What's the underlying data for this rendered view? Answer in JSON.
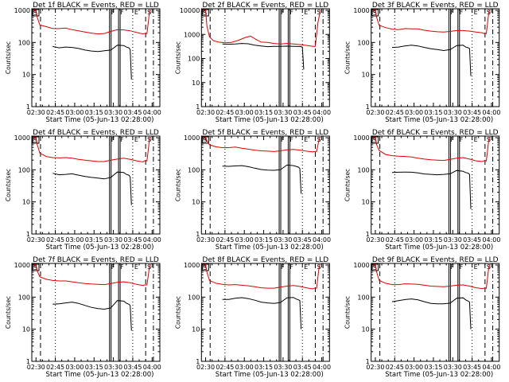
{
  "chart_data": [
    {
      "type": "line",
      "title": "Det 1f BLACK = Events, RED = LLD",
      "ylabel": "Counts/sec",
      "xlabel": "Start Time (05-Jun-13 02:28:00)",
      "ylim": [
        1,
        1000
      ],
      "xlim_min": [
        0,
        98
      ],
      "series": [
        {
          "name": "LLD",
          "color": "#e00000",
          "t": [
            0,
            2,
            3,
            5,
            10,
            15,
            20,
            25,
            30,
            35,
            40,
            45,
            50,
            55,
            60,
            65,
            70,
            75,
            80,
            85,
            86,
            88,
            90,
            91
          ],
          "y": [
            1100,
            1100,
            600,
            350,
            310,
            270,
            270,
            280,
            250,
            230,
            210,
            195,
            185,
            190,
            220,
            250,
            245,
            230,
            205,
            185,
            190,
            190,
            900,
            1100
          ]
        },
        {
          "name": "Events",
          "color": "#000000",
          "t": [
            15,
            20,
            25,
            30,
            35,
            40,
            45,
            50,
            55,
            60,
            65,
            70,
            72,
            74,
            75,
            76
          ],
          "y": [
            75,
            68,
            72,
            70,
            65,
            58,
            54,
            52,
            55,
            58,
            82,
            80,
            72,
            68,
            60,
            7
          ]
        }
      ]
    },
    {
      "type": "line",
      "title": "Det 2f BLACK = Events, RED = LLD",
      "ylabel": "Counts/sec",
      "xlabel": "Start Time (05-Jun-13 02:28:00)",
      "ylim": [
        1,
        10000
      ],
      "xlim_min": [
        0,
        98
      ],
      "series": [
        {
          "name": "LLD",
          "color": "#e00000",
          "t": [
            0,
            2,
            3,
            5,
            8,
            12,
            17,
            22,
            27,
            33,
            37,
            41,
            45,
            50,
            55,
            60,
            65,
            70,
            75,
            80,
            85,
            87,
            89,
            91
          ],
          "y": [
            12000,
            12000,
            2200,
            800,
            550,
            480,
            450,
            470,
            560,
            750,
            850,
            620,
            480,
            470,
            420,
            400,
            420,
            400,
            380,
            350,
            320,
            320,
            3000,
            12000
          ]
        },
        {
          "name": "Events",
          "color": "#000000",
          "t": [
            15,
            20,
            25,
            30,
            35,
            40,
            45,
            50,
            55,
            60,
            65,
            70,
            75,
            77,
            78
          ],
          "y": [
            400,
            390,
            400,
            420,
            410,
            360,
            330,
            310,
            320,
            320,
            325,
            320,
            315,
            300,
            35
          ]
        }
      ]
    },
    {
      "type": "line",
      "title": "Det 3f BLACK = Events, RED = LLD",
      "ylabel": "Counts/sec",
      "xlabel": "Start Time (05-Jun-13 02:28:00)",
      "ylim": [
        1,
        1000
      ],
      "xlim_min": [
        0,
        98
      ],
      "series": [
        {
          "name": "LLD",
          "color": "#e00000",
          "t": [
            0,
            2,
            3,
            5,
            10,
            15,
            20,
            25,
            30,
            35,
            40,
            45,
            50,
            55,
            60,
            65,
            70,
            75,
            80,
            85,
            86,
            88,
            90,
            91
          ],
          "y": [
            1100,
            1100,
            600,
            340,
            290,
            260,
            250,
            270,
            265,
            265,
            240,
            225,
            215,
            210,
            220,
            235,
            235,
            225,
            210,
            200,
            190,
            190,
            900,
            1100
          ]
        },
        {
          "name": "Events",
          "color": "#000000",
          "t": [
            15,
            20,
            25,
            30,
            35,
            40,
            45,
            50,
            55,
            60,
            65,
            70,
            72,
            74,
            75,
            76
          ],
          "y": [
            70,
            72,
            78,
            82,
            78,
            70,
            64,
            60,
            56,
            60,
            80,
            82,
            72,
            68,
            65,
            9
          ]
        }
      ]
    },
    {
      "type": "line",
      "title": "Det 4f BLACK = Events, RED = LLD",
      "ylabel": "Counts/sec",
      "xlabel": "Start Time (05-Jun-13 02:28:00)",
      "ylim": [
        1,
        1000
      ],
      "xlim_min": [
        0,
        98
      ],
      "series": [
        {
          "name": "LLD",
          "color": "#e00000",
          "t": [
            0,
            2,
            3,
            5,
            10,
            15,
            20,
            25,
            30,
            35,
            40,
            45,
            50,
            55,
            60,
            65,
            70,
            75,
            80,
            85,
            86,
            88,
            90,
            91
          ],
          "y": [
            1100,
            1100,
            600,
            330,
            260,
            240,
            235,
            240,
            230,
            210,
            200,
            190,
            180,
            180,
            200,
            215,
            230,
            210,
            190,
            175,
            190,
            190,
            900,
            1100
          ]
        },
        {
          "name": "Events",
          "color": "#000000",
          "t": [
            15,
            20,
            25,
            30,
            35,
            40,
            45,
            50,
            55,
            60,
            65,
            70,
            72,
            74,
            75,
            76
          ],
          "y": [
            78,
            70,
            72,
            75,
            68,
            62,
            58,
            55,
            52,
            58,
            85,
            82,
            72,
            68,
            60,
            8
          ]
        }
      ]
    },
    {
      "type": "line",
      "title": "Det 5f BLACK = Events, RED = LLD",
      "ylabel": "Counts/sec",
      "xlabel": "Start Time (05-Jun-13 02:28:00)",
      "ylim": [
        1,
        1000
      ],
      "xlim_min": [
        0,
        98
      ],
      "series": [
        {
          "name": "LLD",
          "color": "#e00000",
          "t": [
            0,
            2,
            3,
            5,
            10,
            15,
            20,
            25,
            30,
            35,
            40,
            45,
            50,
            55,
            60,
            65,
            70,
            75,
            80,
            85,
            86,
            88,
            90,
            91
          ],
          "y": [
            1100,
            1100,
            800,
            600,
            520,
            490,
            490,
            510,
            470,
            440,
            410,
            390,
            380,
            370,
            390,
            420,
            430,
            410,
            380,
            360,
            370,
            370,
            900,
            1100
          ]
        },
        {
          "name": "Events",
          "color": "#000000",
          "t": [
            15,
            20,
            25,
            30,
            35,
            40,
            45,
            50,
            55,
            60,
            65,
            70,
            72,
            74,
            75,
            76
          ],
          "y": [
            130,
            128,
            132,
            135,
            125,
            112,
            102,
            98,
            96,
            100,
            140,
            135,
            128,
            120,
            110,
            18
          ]
        }
      ]
    },
    {
      "type": "line",
      "title": "Det 6f BLACK = Events, RED = LLD",
      "ylabel": "Counts/sec",
      "xlabel": "Start Time (05-Jun-13 02:28:00)",
      "ylim": [
        1,
        1000
      ],
      "xlim_min": [
        0,
        98
      ],
      "series": [
        {
          "name": "LLD",
          "color": "#e00000",
          "t": [
            0,
            2,
            3,
            5,
            10,
            15,
            20,
            25,
            30,
            35,
            40,
            45,
            50,
            55,
            60,
            65,
            70,
            75,
            80,
            85,
            86,
            88,
            90,
            91
          ],
          "y": [
            1100,
            1100,
            600,
            400,
            300,
            275,
            265,
            260,
            250,
            230,
            215,
            205,
            200,
            195,
            210,
            230,
            240,
            215,
            190,
            180,
            190,
            190,
            900,
            1100
          ]
        },
        {
          "name": "Events",
          "color": "#000000",
          "t": [
            15,
            20,
            25,
            30,
            35,
            40,
            45,
            50,
            55,
            60,
            65,
            70,
            72,
            74,
            75,
            76
          ],
          "y": [
            82,
            84,
            85,
            84,
            80,
            74,
            72,
            70,
            72,
            75,
            95,
            90,
            82,
            78,
            72,
            6
          ]
        }
      ]
    },
    {
      "type": "line",
      "title": "Det 7f BLACK = Events, RED = LLD",
      "ylabel": "Counts/sec",
      "xlabel": "Start Time (05-Jun-13 02:28:00)",
      "ylim": [
        1,
        1000
      ],
      "xlim_min": [
        0,
        98
      ],
      "series": [
        {
          "name": "LLD",
          "color": "#e00000",
          "t": [
            0,
            2,
            3,
            5,
            10,
            15,
            20,
            25,
            30,
            35,
            40,
            45,
            50,
            55,
            60,
            65,
            70,
            75,
            80,
            85,
            86,
            88,
            90,
            91
          ],
          "y": [
            1100,
            1100,
            650,
            430,
            360,
            330,
            320,
            320,
            300,
            280,
            265,
            255,
            250,
            245,
            265,
            290,
            300,
            280,
            250,
            230,
            240,
            240,
            900,
            1100
          ]
        },
        {
          "name": "Events",
          "color": "#000000",
          "t": [
            15,
            20,
            25,
            30,
            35,
            40,
            45,
            50,
            55,
            60,
            65,
            70,
            72,
            74,
            75,
            76
          ],
          "y": [
            60,
            62,
            66,
            70,
            64,
            55,
            48,
            44,
            42,
            46,
            78,
            75,
            65,
            60,
            55,
            9
          ]
        }
      ]
    },
    {
      "type": "line",
      "title": "Det 8f BLACK = Events, RED = LLD",
      "ylabel": "Counts/sec",
      "xlabel": "Start Time (05-Jun-13 02:28:00)",
      "ylim": [
        1,
        1000
      ],
      "xlim_min": [
        0,
        98
      ],
      "series": [
        {
          "name": "LLD",
          "color": "#e00000",
          "t": [
            0,
            2,
            3,
            5,
            10,
            15,
            20,
            25,
            30,
            35,
            40,
            45,
            50,
            55,
            60,
            65,
            70,
            75,
            80,
            85,
            86,
            88,
            90,
            91
          ],
          "y": [
            1100,
            1100,
            600,
            330,
            270,
            250,
            240,
            245,
            235,
            225,
            210,
            195,
            190,
            190,
            205,
            220,
            230,
            215,
            195,
            180,
            190,
            190,
            900,
            1100
          ]
        },
        {
          "name": "Events",
          "color": "#000000",
          "t": [
            15,
            20,
            25,
            30,
            35,
            40,
            45,
            50,
            55,
            60,
            65,
            70,
            72,
            74,
            75,
            76
          ],
          "y": [
            85,
            85,
            92,
            96,
            90,
            80,
            70,
            66,
            64,
            68,
            95,
            98,
            88,
            82,
            78,
            10
          ]
        }
      ]
    },
    {
      "type": "line",
      "title": "Det 9f BLACK = Events, RED = LLD",
      "ylabel": "Counts/sec",
      "xlabel": "Start Time (05-Jun-13 02:28:00)",
      "ylim": [
        1,
        1000
      ],
      "xlim_min": [
        0,
        98
      ],
      "series": [
        {
          "name": "LLD",
          "color": "#e00000",
          "t": [
            0,
            2,
            3,
            5,
            10,
            15,
            20,
            25,
            30,
            35,
            40,
            45,
            50,
            55,
            60,
            65,
            70,
            75,
            80,
            85,
            86,
            88,
            90,
            91
          ],
          "y": [
            1100,
            1100,
            600,
            330,
            270,
            245,
            245,
            260,
            255,
            250,
            235,
            220,
            215,
            210,
            220,
            235,
            240,
            220,
            195,
            185,
            190,
            190,
            900,
            1100
          ]
        },
        {
          "name": "Events",
          "color": "#000000",
          "t": [
            15,
            20,
            25,
            30,
            35,
            40,
            45,
            50,
            55,
            60,
            65,
            70,
            72,
            74,
            75,
            76
          ],
          "y": [
            72,
            78,
            84,
            88,
            82,
            72,
            64,
            62,
            62,
            65,
            92,
            95,
            82,
            75,
            70,
            10
          ]
        }
      ]
    }
  ],
  "shared": {
    "x_tick_labels": [
      "02:30",
      "02:45",
      "03:00",
      "03:15",
      "03:30",
      "03:45",
      "04:00"
    ],
    "x_tick_minutes": [
      2,
      17,
      32,
      47,
      62,
      77,
      92
    ],
    "markers": [
      {
        "label": "S",
        "t": 0.5,
        "style": "box"
      },
      {
        "label": "",
        "t": 5.5,
        "style": "dashed"
      },
      {
        "label": "",
        "t": 17,
        "style": "dotted"
      },
      {
        "label": "F",
        "t": 59,
        "style": "solid-pair"
      },
      {
        "label": "F",
        "t": 66,
        "style": "solid-pair"
      },
      {
        "label": "E",
        "t": 77,
        "style": "dotted"
      },
      {
        "label": "S",
        "t": 87,
        "style": "dashed"
      },
      {
        "label": "",
        "t": 93,
        "style": "dashdot"
      }
    ]
  }
}
